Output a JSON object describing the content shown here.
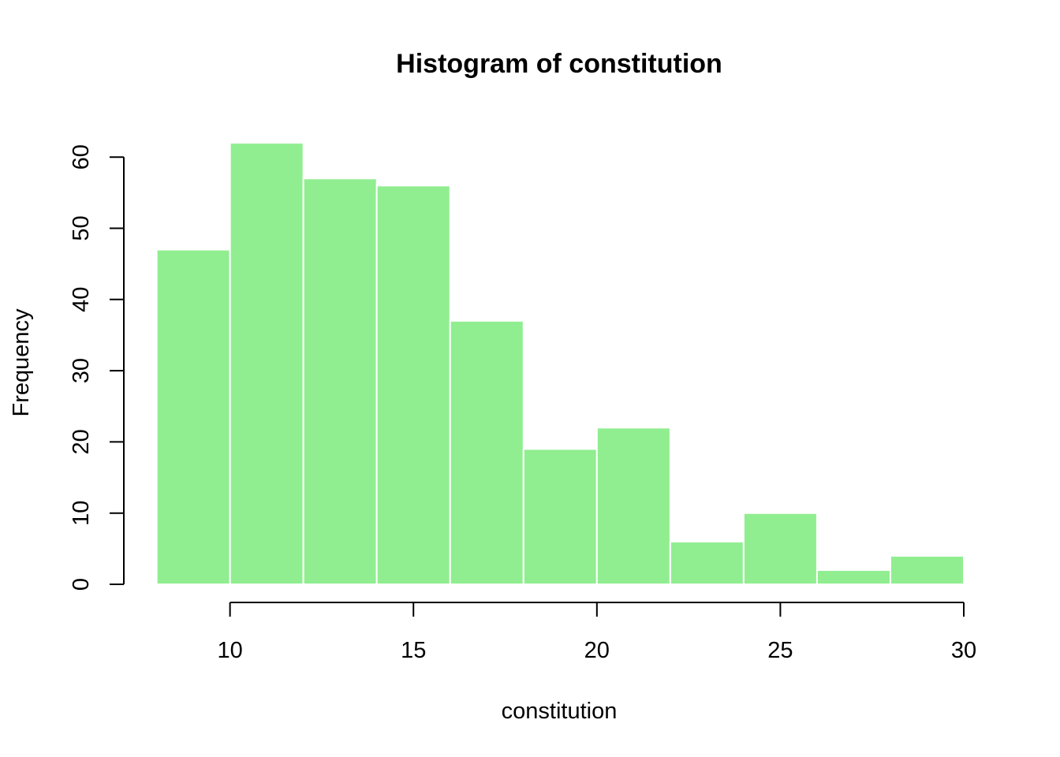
{
  "chart_data": {
    "type": "bar",
    "title": "Histogram of constitution",
    "xlabel": "constitution",
    "ylabel": "Frequency",
    "bins": [
      {
        "start": 8,
        "end": 10,
        "count": 47
      },
      {
        "start": 10,
        "end": 12,
        "count": 62
      },
      {
        "start": 12,
        "end": 14,
        "count": 57
      },
      {
        "start": 14,
        "end": 16,
        "count": 56
      },
      {
        "start": 16,
        "end": 18,
        "count": 37
      },
      {
        "start": 18,
        "end": 20,
        "count": 19
      },
      {
        "start": 20,
        "end": 22,
        "count": 22
      },
      {
        "start": 22,
        "end": 24,
        "count": 6
      },
      {
        "start": 24,
        "end": 26,
        "count": 10
      },
      {
        "start": 26,
        "end": 28,
        "count": 2
      },
      {
        "start": 28,
        "end": 30,
        "count": 4
      }
    ],
    "xlim": [
      8,
      30
    ],
    "ylim": [
      0,
      62
    ],
    "x_ticks": [
      10,
      15,
      20,
      25,
      30
    ],
    "y_ticks": [
      0,
      10,
      20,
      30,
      40,
      50,
      60
    ],
    "grid": false,
    "bar_color": "#90EE90",
    "bar_border_color": "#FFFFFF"
  }
}
